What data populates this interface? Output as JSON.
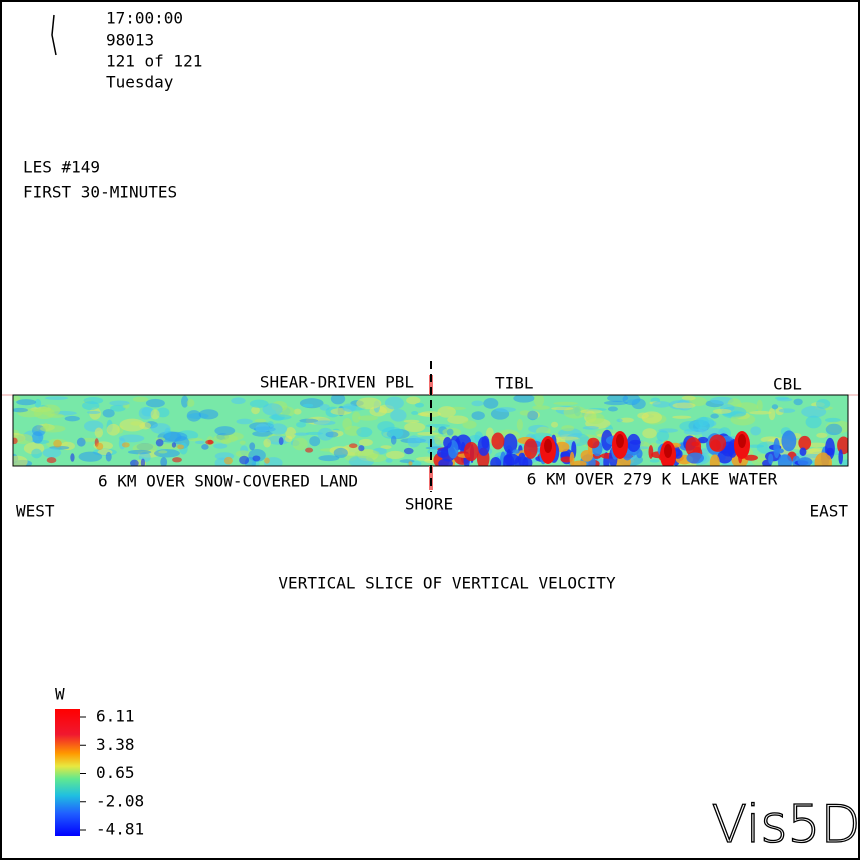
{
  "header": {
    "time": "17:00:00",
    "date": "98013",
    "step": "121 of 121",
    "day": "Tuesday"
  },
  "title": {
    "line1": "LES #149",
    "line2": "FIRST 30-MINUTES"
  },
  "slice_labels": {
    "shear": "SHEAR-DRIVEN PBL",
    "tibl": "TIBL",
    "cbl": "CBL",
    "land": "6 KM OVER SNOW-COVERED LAND",
    "lake": "6 KM OVER 279 K LAKE WATER",
    "shore": "SHORE",
    "west": "WEST",
    "east": "EAST"
  },
  "caption": "VERTICAL SLICE OF VERTICAL VELOCITY",
  "colorbar": {
    "variable": "W",
    "labels": [
      "6.11",
      "3.38",
      "0.65",
      "-2.08",
      "-4.81"
    ]
  },
  "logo": "Vis5D"
}
